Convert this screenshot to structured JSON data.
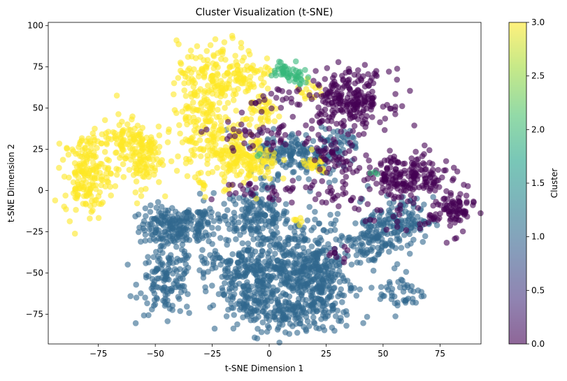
{
  "chart_data": {
    "type": "scatter",
    "title": "Cluster Visualization (t-SNE)",
    "xlabel": "t-SNE Dimension 1",
    "ylabel": "t-SNE Dimension 2",
    "xlim": [
      -97,
      93
    ],
    "ylim": [
      -93,
      102
    ],
    "xticks": [
      -75,
      -50,
      -25,
      0,
      25,
      50,
      75
    ],
    "yticks": [
      -75,
      -50,
      -25,
      0,
      25,
      50,
      75,
      100
    ],
    "grid": false,
    "colorbar": {
      "label": "Cluster",
      "range": [
        0.0,
        3.0
      ],
      "ticks": [
        "0.0",
        "0.5",
        "1.0",
        "1.5",
        "2.0",
        "2.5",
        "3.0"
      ],
      "colormap": "viridis"
    },
    "point_alpha": 0.6,
    "series": [
      {
        "cluster": 0,
        "color": "#440154",
        "blobs": [
          {
            "cx": 35,
            "cy": 55,
            "sx": 9,
            "sy": 9,
            "n": 240
          },
          {
            "cx": 60,
            "cy": 8,
            "sx": 10,
            "sy": 7,
            "n": 200
          },
          {
            "cx": 80,
            "cy": -12,
            "sx": 5,
            "sy": 7,
            "n": 90
          },
          {
            "cx": 27,
            "cy": 20,
            "sx": 5,
            "sy": 7,
            "n": 50
          },
          {
            "cx": 2,
            "cy": 0,
            "sx": 14,
            "sy": 3,
            "n": 40
          },
          {
            "cx": 2,
            "cy": 55,
            "sx": 6,
            "sy": 4,
            "n": 20
          },
          {
            "cx": -7,
            "cy": 35,
            "sx": 10,
            "sy": 5,
            "n": 25
          },
          {
            "cx": 2,
            "cy": 30,
            "sx": 5,
            "sy": 4,
            "n": 20
          },
          {
            "cx": 30,
            "cy": -5,
            "sx": 5,
            "sy": 4,
            "n": 15
          },
          {
            "cx": 55,
            "cy": -15,
            "sx": 10,
            "sy": 4,
            "n": 20
          },
          {
            "cx": 30,
            "cy": -40,
            "sx": 3,
            "sy": 3,
            "n": 10
          }
        ]
      },
      {
        "cluster": 1,
        "color": "#31688e",
        "blobs": [
          {
            "cx": -45,
            "cy": -22,
            "sx": 6,
            "sy": 6,
            "n": 140
          },
          {
            "cx": -30,
            "cy": -20,
            "sx": 7,
            "sy": 8,
            "n": 100
          },
          {
            "cx": -5,
            "cy": -15,
            "sx": 7,
            "sy": 8,
            "n": 140
          },
          {
            "cx": -45,
            "cy": -55,
            "sx": 6,
            "sy": 10,
            "n": 140
          },
          {
            "cx": -25,
            "cy": -45,
            "sx": 5,
            "sy": 4,
            "n": 25
          },
          {
            "cx": -8,
            "cy": -50,
            "sx": 10,
            "sy": 8,
            "n": 140
          },
          {
            "cx": 10,
            "cy": -45,
            "sx": 12,
            "sy": 15,
            "n": 360
          },
          {
            "cx": 10,
            "cy": -75,
            "sx": 12,
            "sy": 5,
            "n": 160
          },
          {
            "cx": 22,
            "cy": -55,
            "sx": 6,
            "sy": 12,
            "n": 160
          },
          {
            "cx": -10,
            "cy": -65,
            "sx": 6,
            "sy": 5,
            "n": 70
          },
          {
            "cx": 45,
            "cy": -30,
            "sx": 6,
            "sy": 8,
            "n": 120
          },
          {
            "cx": 58,
            "cy": -18,
            "sx": 7,
            "sy": 7,
            "n": 110
          },
          {
            "cx": 58,
            "cy": -62,
            "sx": 5,
            "sy": 6,
            "n": 45
          },
          {
            "cx": 15,
            "cy": 20,
            "sx": 10,
            "sy": 8,
            "n": 120
          },
          {
            "cx": 5,
            "cy": 25,
            "sx": 6,
            "sy": 5,
            "n": 50
          },
          {
            "cx": 30,
            "cy": 30,
            "sx": 5,
            "sy": 4,
            "n": 40
          }
        ]
      },
      {
        "cluster": 2,
        "color": "#35b779",
        "blobs": [
          {
            "cx": 8,
            "cy": 73,
            "sx": 4,
            "sy": 3,
            "n": 40
          },
          {
            "cx": 14,
            "cy": 68,
            "sx": 2,
            "sy": 2,
            "n": 10
          },
          {
            "cx": 46,
            "cy": 10,
            "sx": 1,
            "sy": 1,
            "n": 3
          },
          {
            "cx": -5,
            "cy": 22,
            "sx": 1,
            "sy": 1,
            "n": 2
          }
        ]
      },
      {
        "cluster": 3,
        "color": "#fde725",
        "blobs": [
          {
            "cx": -80,
            "cy": 10,
            "sx": 5,
            "sy": 12,
            "n": 180
          },
          {
            "cx": -57,
            "cy": 22,
            "sx": 5,
            "sy": 10,
            "n": 150
          },
          {
            "cx": -68,
            "cy": 32,
            "sx": 5,
            "sy": 4,
            "n": 40
          },
          {
            "cx": -22,
            "cy": 70,
            "sx": 9,
            "sy": 10,
            "n": 170
          },
          {
            "cx": -30,
            "cy": 50,
            "sx": 6,
            "sy": 6,
            "n": 60
          },
          {
            "cx": -25,
            "cy": 30,
            "sx": 8,
            "sy": 10,
            "n": 130
          },
          {
            "cx": -10,
            "cy": 17,
            "sx": 7,
            "sy": 7,
            "n": 130
          },
          {
            "cx": -5,
            "cy": 72,
            "sx": 5,
            "sy": 3,
            "n": 25
          },
          {
            "cx": -2,
            "cy": 47,
            "sx": 4,
            "sy": 4,
            "n": 40
          },
          {
            "cx": 20,
            "cy": 15,
            "sx": 3,
            "sy": 3,
            "n": 25
          },
          {
            "cx": 18,
            "cy": 60,
            "sx": 3,
            "sy": 3,
            "n": 15
          },
          {
            "cx": -30,
            "cy": 2,
            "sx": 2,
            "sy": 3,
            "n": 10
          },
          {
            "cx": 12,
            "cy": -18,
            "sx": 2,
            "sy": 2,
            "n": 6
          }
        ]
      }
    ]
  }
}
